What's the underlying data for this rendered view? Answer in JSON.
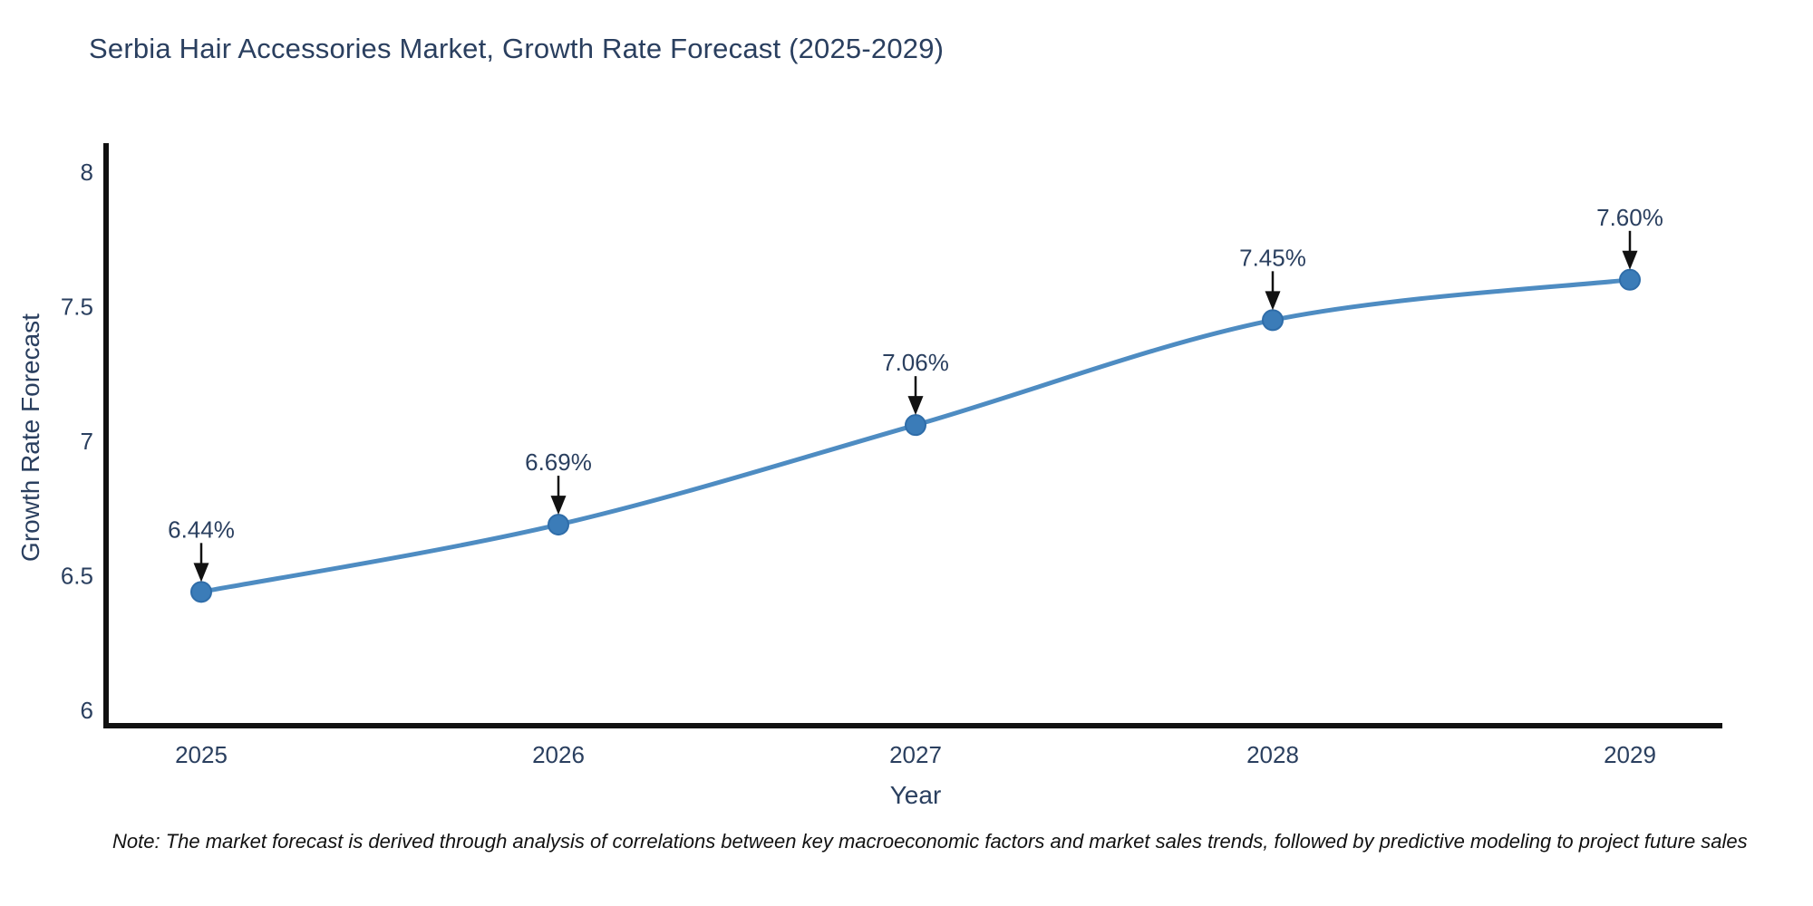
{
  "title": "Serbia Hair Accessories Market, Growth Rate Forecast (2025-2029)",
  "note": "Note: The market forecast is derived through analysis of correlations between key macroeconomic factors and market sales trends, followed by predictive modeling to project future sales",
  "chart_data": {
    "type": "line",
    "title": "Serbia Hair Accessories Market, Growth Rate Forecast (2025-2029)",
    "xlabel": "Year",
    "ylabel": "Growth Rate Forecast",
    "x": [
      2025,
      2026,
      2027,
      2028,
      2029
    ],
    "x_tick_labels": [
      "2025",
      "2026",
      "2027",
      "2028",
      "2029"
    ],
    "values": [
      6.44,
      6.69,
      7.06,
      7.45,
      7.6
    ],
    "point_labels": [
      "6.44%",
      "6.69%",
      "7.06%",
      "7.45%",
      "7.60%"
    ],
    "y_ticks": [
      6,
      6.5,
      7,
      7.5,
      8
    ],
    "y_tick_labels": [
      "6",
      "6.5",
      "7",
      "7.5",
      "8"
    ],
    "ylim": [
      5.95,
      8.1
    ],
    "grid": false,
    "legend_position": "none",
    "line_shape": "spline",
    "marker": "circle-with-down-arrow-annotation"
  },
  "colors": {
    "background": "#ffffff",
    "title_text": "#2a3f5f",
    "tick_text": "#2a3f5f",
    "annotation_text": "#2a3f5f",
    "axis_line": "#111111",
    "series_line": "#4e8cc2",
    "marker_fill": "#3b7cb8",
    "marker_edge": "#2f6da9",
    "arrow": "#111111",
    "note_text": "#121212"
  }
}
